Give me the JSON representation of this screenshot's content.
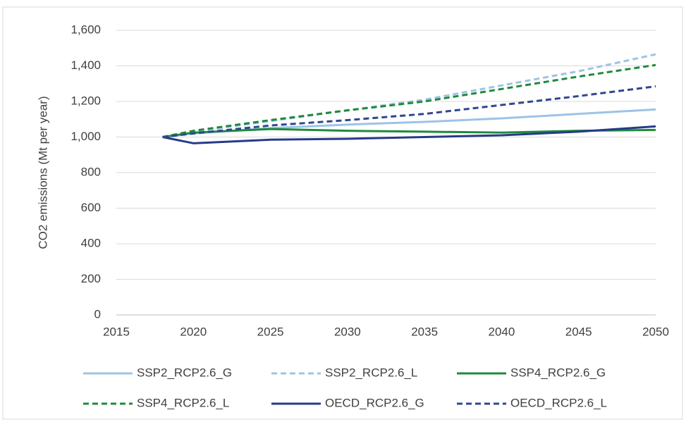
{
  "chart_data": {
    "type": "line",
    "y_label": "CO2 emissions (Mt per year)",
    "x": [
      2018,
      2020,
      2025,
      2030,
      2035,
      2040,
      2045,
      2050
    ],
    "xlim": [
      2015,
      2050
    ],
    "xticks": [
      2015,
      2020,
      2025,
      2030,
      2035,
      2040,
      2045,
      2050
    ],
    "ylim": [
      0,
      1600
    ],
    "yticks": [
      0,
      200,
      400,
      600,
      800,
      {
        "value": 1000,
        "label": "1,000"
      },
      {
        "value": 1200,
        "label": "1,200"
      },
      {
        "value": 1400,
        "label": "1,400"
      },
      {
        "value": 1600,
        "label": "1,600"
      }
    ],
    "grid": true,
    "legend": "bottom",
    "series": [
      {
        "name": "SSP2_RCP2.6_G",
        "color": "#9dc3e6",
        "dashed": false,
        "values": [
          1000,
          1020,
          1050,
          1070,
          1085,
          1105,
          1130,
          1155
        ]
      },
      {
        "name": "SSP2_RCP2.6_L",
        "color": "#9dc3e6",
        "dashed": true,
        "values": [
          1000,
          1030,
          1090,
          1150,
          1210,
          1290,
          1370,
          1465
        ]
      },
      {
        "name": "SSP4_RCP2.6_G",
        "color": "#1e8a3c",
        "dashed": false,
        "values": [
          1000,
          1025,
          1045,
          1035,
          1030,
          1025,
          1035,
          1040
        ]
      },
      {
        "name": "SSP4_RCP2.6_L",
        "color": "#1e8a3c",
        "dashed": true,
        "values": [
          1000,
          1035,
          1095,
          1150,
          1200,
          1270,
          1340,
          1405
        ]
      },
      {
        "name": "OECD_RCP2.6_G",
        "color": "#263a8a",
        "dashed": false,
        "values": [
          1000,
          965,
          985,
          990,
          1000,
          1010,
          1030,
          1060
        ]
      },
      {
        "name": "OECD_RCP2.6_L",
        "color": "#2f4690",
        "dashed": true,
        "values": [
          1000,
          1020,
          1065,
          1095,
          1130,
          1180,
          1230,
          1285
        ]
      }
    ]
  }
}
